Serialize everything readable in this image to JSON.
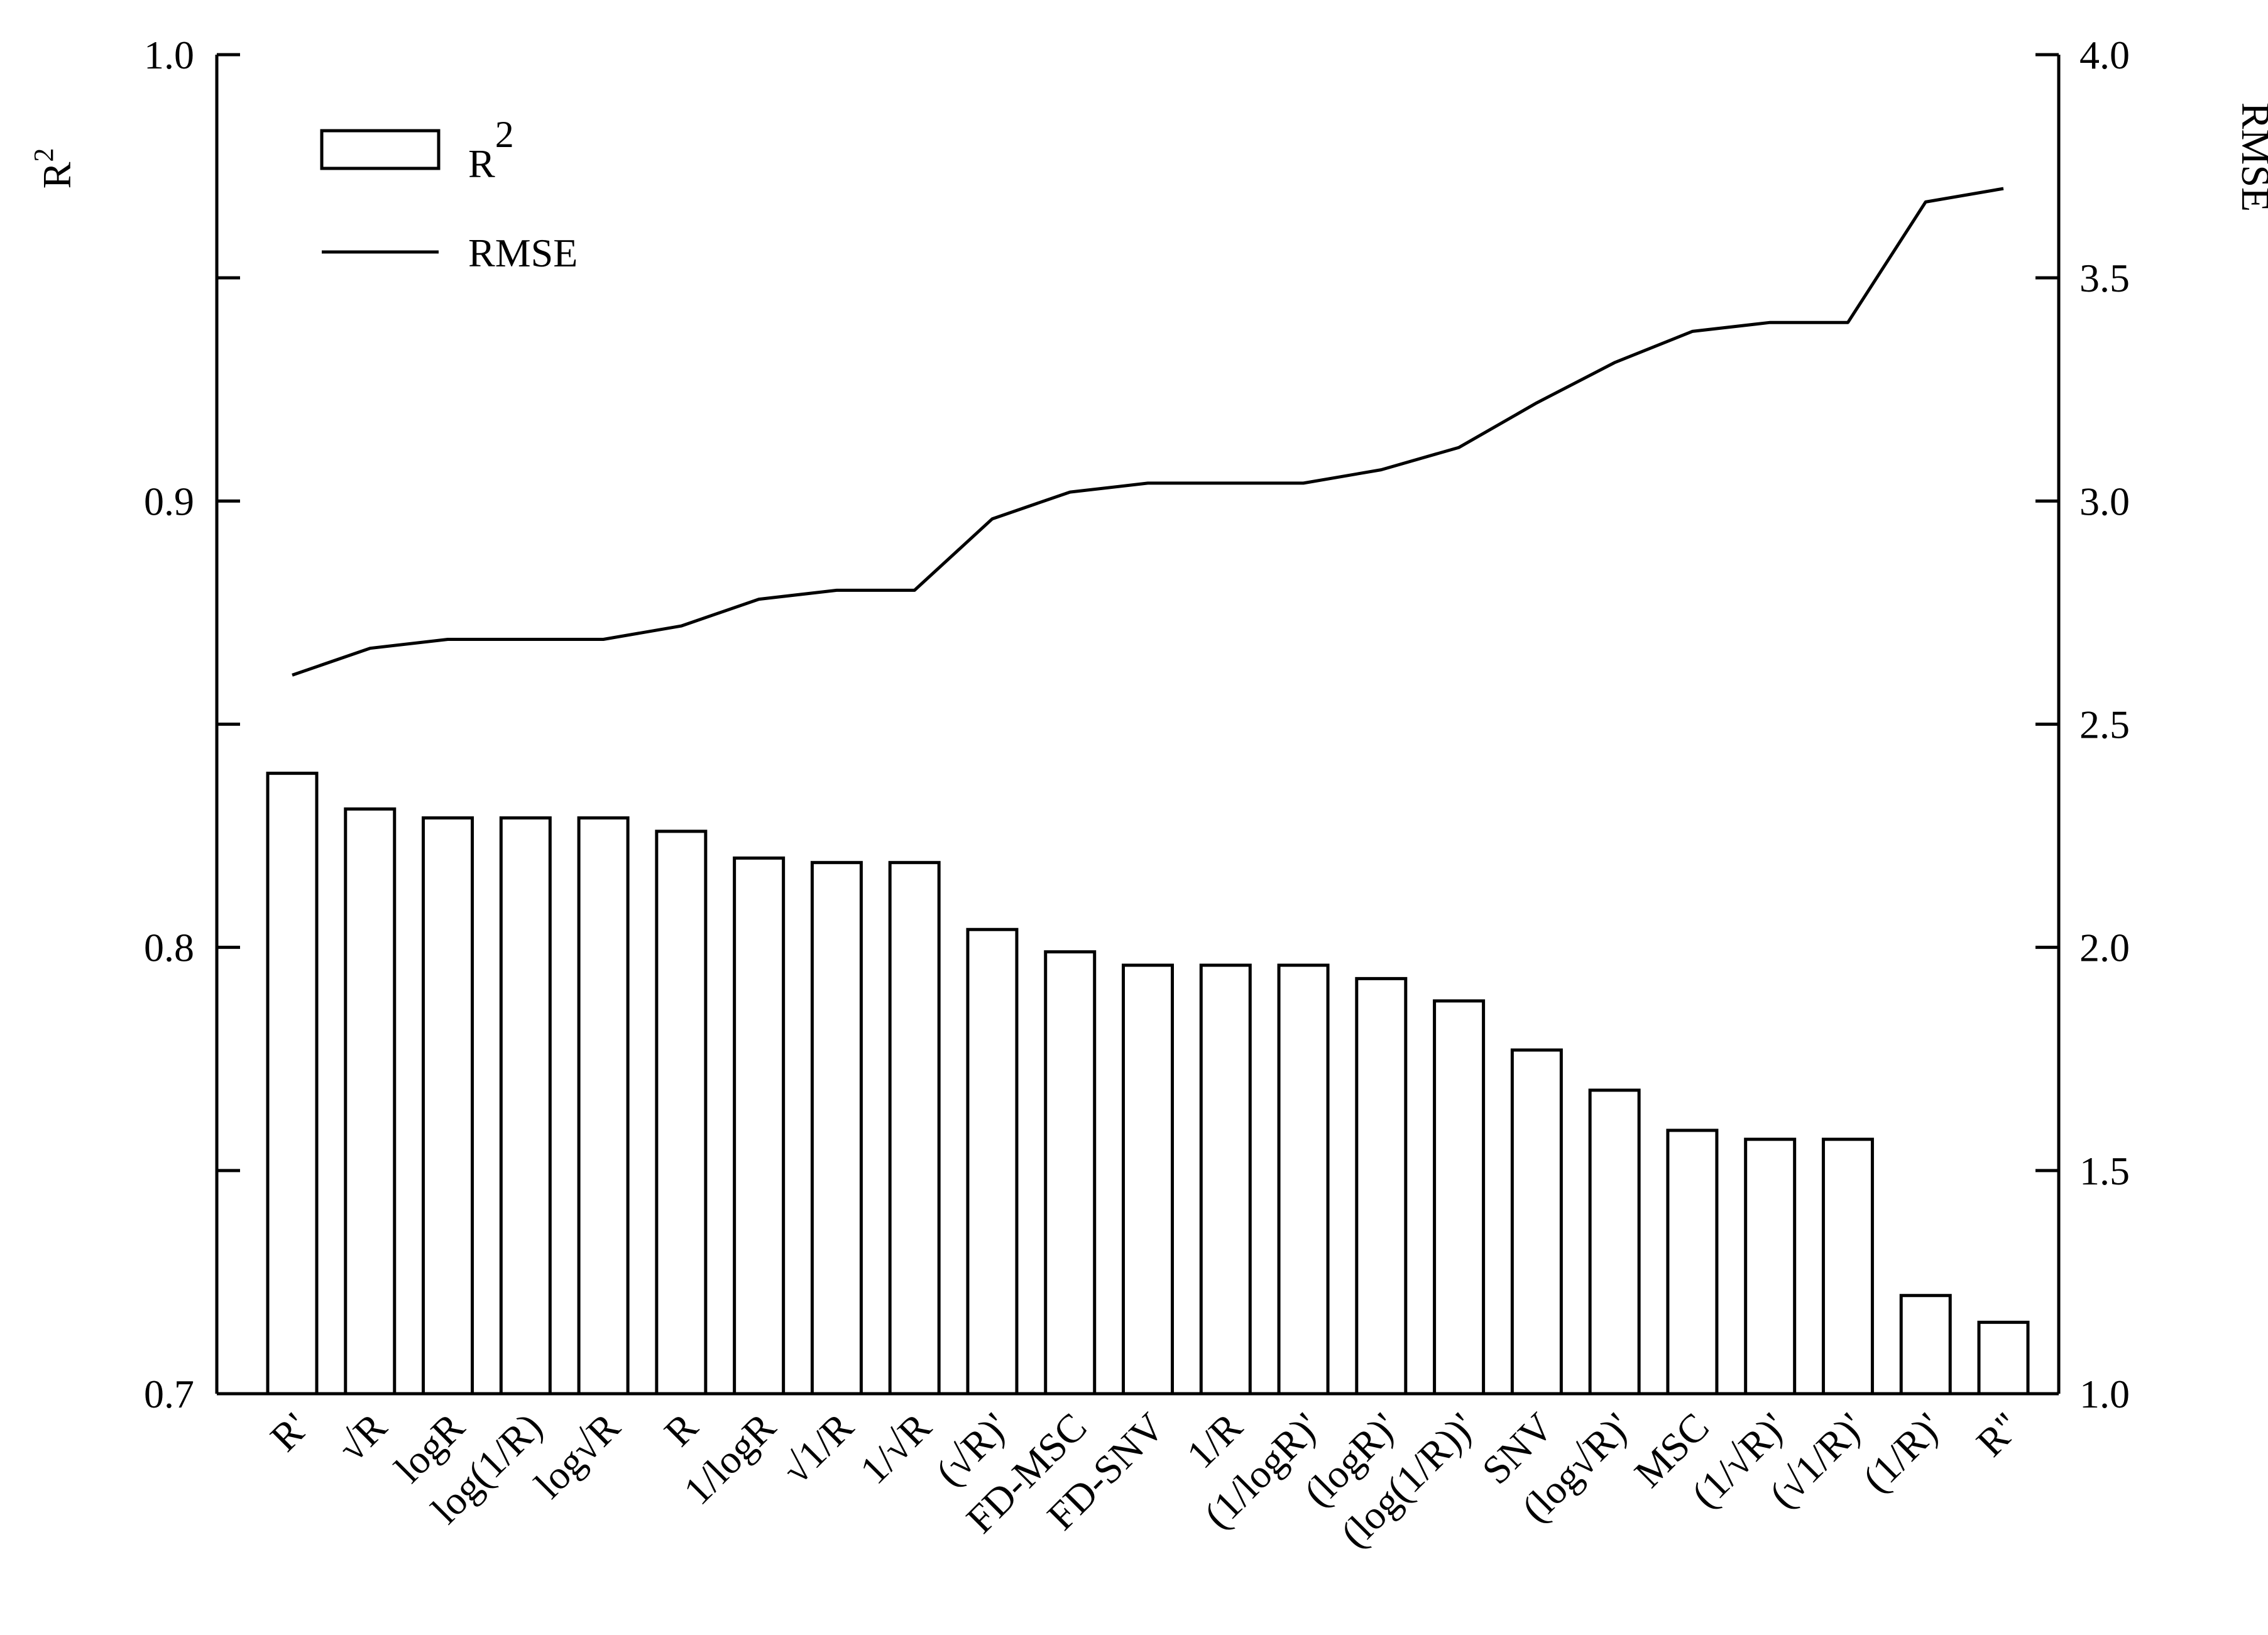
{
  "colors": {
    "ink": "#000000",
    "bar_fill": "#ffffff",
    "background": "#ffffff"
  },
  "chart_data": {
    "type": "bar",
    "y_left": {
      "label": "R",
      "label_superscript": "2",
      "range": [
        0.7,
        1.0
      ],
      "ticks": [
        "0.7",
        "0.8",
        "0.9",
        "1.0"
      ],
      "minor_step": 0.05
    },
    "y_right": {
      "label": "RMSE",
      "range": [
        1.0,
        4.0
      ],
      "ticks": [
        "1.0",
        "1.5",
        "2.0",
        "2.5",
        "3.0",
        "3.5",
        "4.0"
      ]
    },
    "legend": {
      "placement": "top-left",
      "entries": [
        {
          "label": "R",
          "superscript": "2",
          "marker": "bar"
        },
        {
          "label": "RMSE",
          "marker": "line"
        }
      ]
    },
    "categories": [
      "R'",
      "√R",
      "logR",
      "log(1/R)",
      "log√R",
      "R",
      "1/logR",
      "√1/R",
      "1/√R",
      "(√R)'",
      "FD-MSC",
      "FD-SNV",
      "1/R",
      "(1/logR)'",
      "(logR)'",
      "(log(1/R))'",
      "SNV",
      "(log√R)'",
      "MSC",
      "(1/√R)'",
      "(√1/R)'",
      "(1/R)'",
      "R''"
    ],
    "series": [
      {
        "name": "R2",
        "axis": "left",
        "type": "bar",
        "values": [
          0.839,
          0.831,
          0.829,
          0.829,
          0.829,
          0.826,
          0.82,
          0.819,
          0.819,
          0.804,
          0.799,
          0.796,
          0.796,
          0.796,
          0.793,
          0.788,
          0.777,
          0.768,
          0.759,
          0.757,
          0.757,
          0.722,
          0.716
        ]
      },
      {
        "name": "RMSE",
        "axis": "right",
        "type": "line",
        "values": [
          2.61,
          2.67,
          2.69,
          2.69,
          2.69,
          2.72,
          2.78,
          2.8,
          2.8,
          2.96,
          3.02,
          3.04,
          3.04,
          3.04,
          3.07,
          3.12,
          3.22,
          3.31,
          3.38,
          3.4,
          3.4,
          3.67,
          3.7
        ]
      }
    ]
  }
}
